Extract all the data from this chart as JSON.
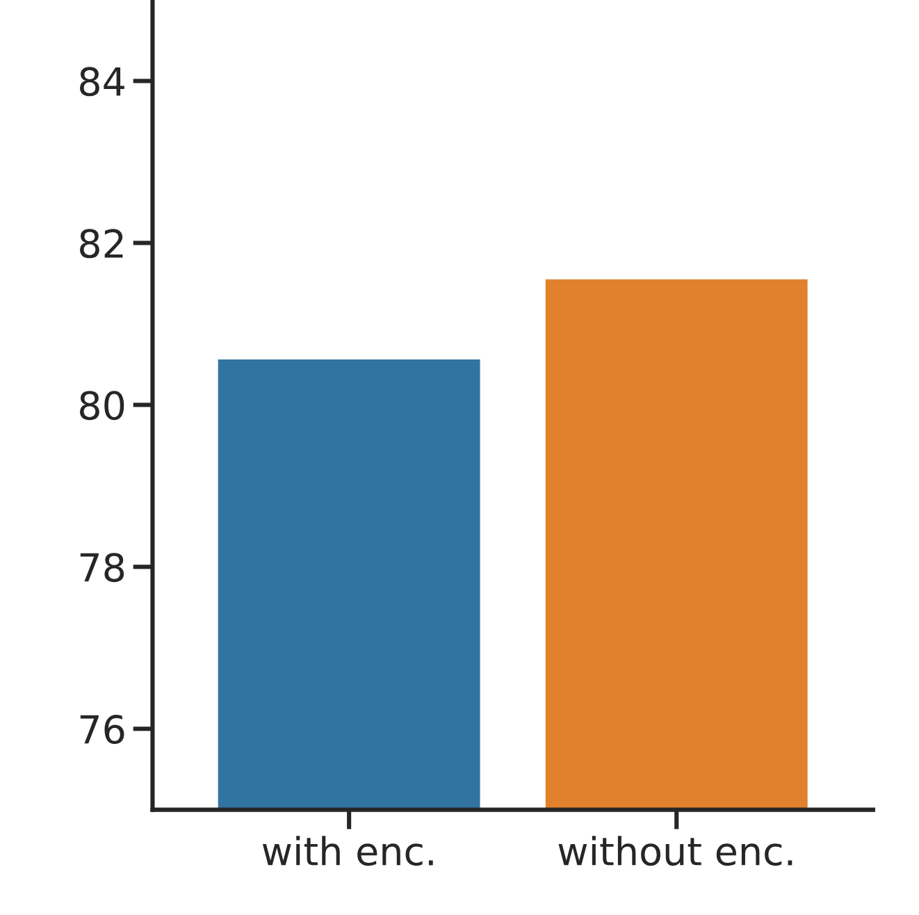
{
  "chart_data": {
    "type": "bar",
    "categories": [
      "with enc.",
      "without enc."
    ],
    "values": [
      80.56,
      81.55
    ],
    "colors": [
      "#3274a1",
      "#e1812c"
    ],
    "ylim": [
      75,
      85
    ],
    "yticks": [
      76,
      78,
      80,
      82,
      84
    ],
    "grid": false,
    "legend": false
  }
}
